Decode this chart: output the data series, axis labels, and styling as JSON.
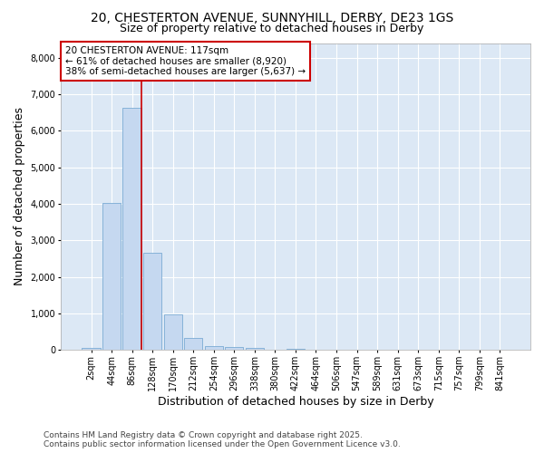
{
  "title_line1": "20, CHESTERTON AVENUE, SUNNYHILL, DERBY, DE23 1GS",
  "title_line2": "Size of property relative to detached houses in Derby",
  "xlabel": "Distribution of detached houses by size in Derby",
  "ylabel": "Number of detached properties",
  "categories": [
    "2sqm",
    "44sqm",
    "86sqm",
    "128sqm",
    "170sqm",
    "212sqm",
    "254sqm",
    "296sqm",
    "338sqm",
    "380sqm",
    "422sqm",
    "464sqm",
    "506sqm",
    "547sqm",
    "589sqm",
    "631sqm",
    "673sqm",
    "715sqm",
    "757sqm",
    "799sqm",
    "841sqm"
  ],
  "values": [
    50,
    4020,
    6620,
    2650,
    970,
    340,
    110,
    85,
    55,
    10,
    40,
    0,
    0,
    0,
    0,
    0,
    0,
    0,
    0,
    0,
    0
  ],
  "bar_color": "#c5d8f0",
  "bar_edge_color": "#7aabd4",
  "vline_color": "#cc0000",
  "annotation_text": "20 CHESTERTON AVENUE: 117sqm\n← 61% of detached houses are smaller (8,920)\n38% of semi-detached houses are larger (5,637) →",
  "annotation_box_facecolor": "#ffffff",
  "annotation_box_edgecolor": "#cc0000",
  "ylim": [
    0,
    8400
  ],
  "yticks": [
    0,
    1000,
    2000,
    3000,
    4000,
    5000,
    6000,
    7000,
    8000
  ],
  "fig_facecolor": "#ffffff",
  "plot_facecolor": "#dce8f5",
  "grid_color": "#ffffff",
  "footer_line1": "Contains HM Land Registry data © Crown copyright and database right 2025.",
  "footer_line2": "Contains public sector information licensed under the Open Government Licence v3.0.",
  "title_fontsize": 10,
  "subtitle_fontsize": 9,
  "axis_label_fontsize": 9,
  "tick_fontsize": 7,
  "annotation_fontsize": 7.5,
  "footer_fontsize": 6.5
}
